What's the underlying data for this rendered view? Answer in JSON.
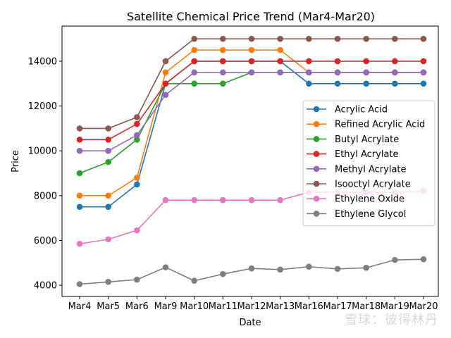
{
  "chart_data": {
    "type": "line",
    "title": "Satellite Chemical Price Trend (Mar4-Mar20)",
    "xlabel": "Date",
    "ylabel": "Price",
    "categories": [
      "Mar4",
      "Mar5",
      "Mar6",
      "Mar9",
      "Mar10",
      "Mar11",
      "Mar12",
      "Mar13",
      "Mar16",
      "Mar17",
      "Mar18",
      "Mar19",
      "Mar20"
    ],
    "ylim": [
      3500,
      15570
    ],
    "yticks": [
      4000,
      6000,
      8000,
      10000,
      12000,
      14000
    ],
    "grid": false,
    "legend_position": "center-right",
    "series": [
      {
        "name": "Acrylic Acid",
        "color": "#1f77b4",
        "values": [
          7500,
          7500,
          8500,
          13000,
          14000,
          14000,
          14000,
          14000,
          13000,
          13000,
          13000,
          13000,
          13000
        ]
      },
      {
        "name": "Refined Acrylic Acid",
        "color": "#ff7f0e",
        "values": [
          8000,
          8000,
          8800,
          13500,
          14500,
          14500,
          14500,
          14500,
          13500,
          13500,
          13500,
          13500,
          13500
        ]
      },
      {
        "name": "Butyl Acrylate",
        "color": "#2ca02c",
        "values": [
          9000,
          9500,
          10500,
          13000,
          13000,
          13000,
          13500,
          13500,
          13500,
          13500,
          13500,
          13500,
          13500
        ]
      },
      {
        "name": "Ethyl Acrylate",
        "color": "#d62728",
        "values": [
          10500,
          10500,
          11200,
          13000,
          14000,
          14000,
          14000,
          14000,
          14000,
          14000,
          14000,
          14000,
          14000
        ]
      },
      {
        "name": "Methyl Acrylate",
        "color": "#9467bd",
        "values": [
          10000,
          10000,
          10700,
          12500,
          13500,
          13500,
          13500,
          13500,
          13500,
          13500,
          13500,
          13500,
          13500
        ]
      },
      {
        "name": "Isooctyl Acrylate",
        "color": "#8c564b",
        "values": [
          11000,
          11000,
          11500,
          14000,
          15000,
          15000,
          15000,
          15000,
          15000,
          15000,
          15000,
          15000,
          15000
        ]
      },
      {
        "name": "Ethylene Oxide",
        "color": "#e377c2",
        "values": [
          5850,
          6050,
          6450,
          7800,
          7800,
          7800,
          7800,
          7800,
          8150,
          8150,
          8150,
          8150,
          8200
        ]
      },
      {
        "name": "Ethylene Glycol",
        "color": "#7f7f7f",
        "values": [
          4050,
          4150,
          4250,
          4800,
          4200,
          4500,
          4750,
          4700,
          4830,
          4730,
          4780,
          5130,
          5160
        ]
      }
    ]
  },
  "watermark": "雪球：彼得林丹"
}
